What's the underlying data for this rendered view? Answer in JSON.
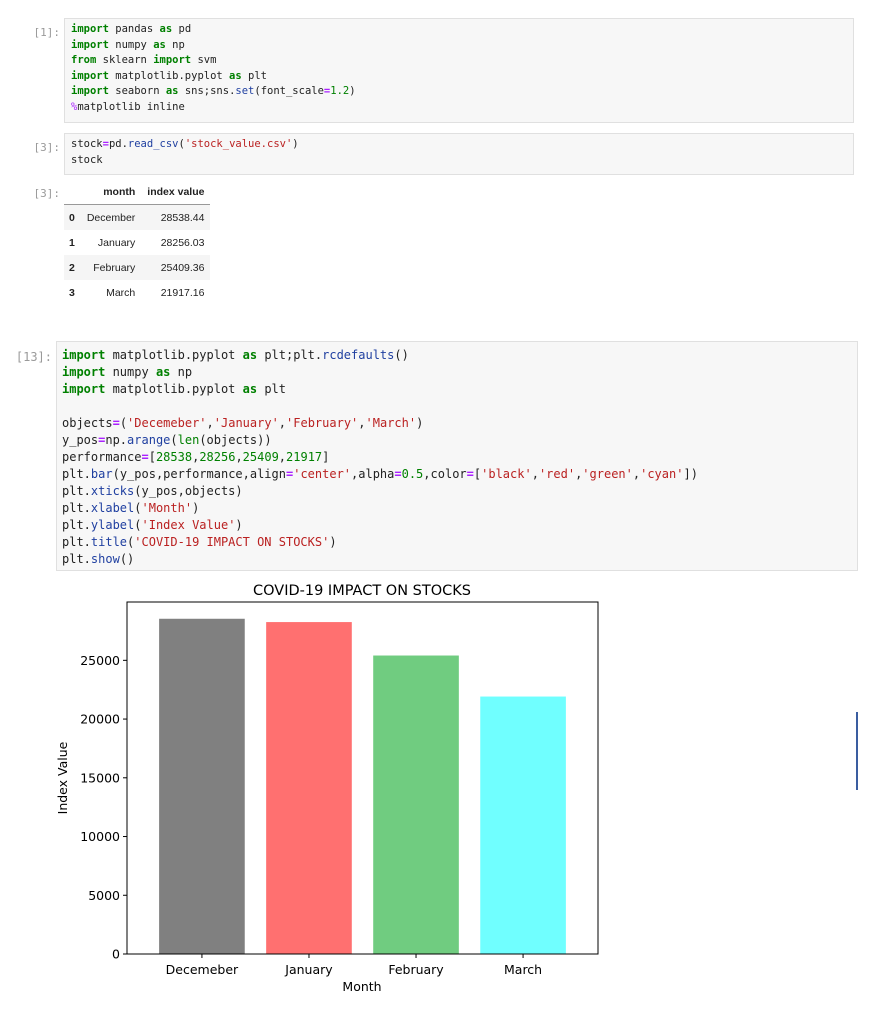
{
  "cells": [
    {
      "prompt": "[1]:",
      "lines": [
        [
          {
            "t": "import",
            "c": "kw"
          },
          {
            "t": " pandas "
          },
          {
            "t": "as",
            "c": "kw"
          },
          {
            "t": " pd"
          }
        ],
        [
          {
            "t": "import",
            "c": "kw"
          },
          {
            "t": " numpy "
          },
          {
            "t": "as",
            "c": "kw"
          },
          {
            "t": " np"
          }
        ],
        [
          {
            "t": "from",
            "c": "kw"
          },
          {
            "t": " sklearn "
          },
          {
            "t": "import",
            "c": "kw"
          },
          {
            "t": " svm"
          }
        ],
        [
          {
            "t": "import",
            "c": "kw"
          },
          {
            "t": " matplotlib.pyplot "
          },
          {
            "t": "as",
            "c": "kw"
          },
          {
            "t": " plt"
          }
        ],
        [
          {
            "t": "import",
            "c": "kw"
          },
          {
            "t": " seaborn "
          },
          {
            "t": "as",
            "c": "kw"
          },
          {
            "t": " sns;sns."
          },
          {
            "t": "set",
            "c": "fn"
          },
          {
            "t": "(font_scale"
          },
          {
            "t": "=",
            "c": "op"
          },
          {
            "t": "1.2",
            "c": "num"
          },
          {
            "t": ")"
          }
        ],
        [
          {
            "t": "%",
            "c": "mag"
          },
          {
            "t": "matplotlib inline"
          }
        ]
      ]
    },
    {
      "prompt": "[3]:",
      "lines": [
        [
          {
            "t": "stock"
          },
          {
            "t": "=",
            "c": "op"
          },
          {
            "t": "pd."
          },
          {
            "t": "read_csv",
            "c": "fn"
          },
          {
            "t": "("
          },
          {
            "t": "'stock_value.csv'",
            "c": "str"
          },
          {
            "t": ")"
          }
        ],
        [
          {
            "t": "stock"
          }
        ]
      ]
    },
    {
      "prompt": "[13]:",
      "lines": [
        [
          {
            "t": "import",
            "c": "kw"
          },
          {
            "t": " matplotlib.pyplot "
          },
          {
            "t": "as",
            "c": "kw"
          },
          {
            "t": " plt;plt."
          },
          {
            "t": "rcdefaults",
            "c": "fn"
          },
          {
            "t": "()"
          }
        ],
        [
          {
            "t": "import",
            "c": "kw"
          },
          {
            "t": " numpy "
          },
          {
            "t": "as",
            "c": "kw"
          },
          {
            "t": " np"
          }
        ],
        [
          {
            "t": "import",
            "c": "kw"
          },
          {
            "t": " matplotlib.pyplot "
          },
          {
            "t": "as",
            "c": "kw"
          },
          {
            "t": " plt"
          }
        ],
        [],
        [
          {
            "t": "objects"
          },
          {
            "t": "=",
            "c": "op"
          },
          {
            "t": "("
          },
          {
            "t": "'Decemeber'",
            "c": "str"
          },
          {
            "t": ","
          },
          {
            "t": "'January'",
            "c": "str"
          },
          {
            "t": ","
          },
          {
            "t": "'February'",
            "c": "str"
          },
          {
            "t": ","
          },
          {
            "t": "'March'",
            "c": "str"
          },
          {
            "t": ")"
          }
        ],
        [
          {
            "t": "y_pos"
          },
          {
            "t": "=",
            "c": "op"
          },
          {
            "t": "np."
          },
          {
            "t": "arange",
            "c": "fn"
          },
          {
            "t": "("
          },
          {
            "t": "len",
            "c": "num"
          },
          {
            "t": "(objects))"
          }
        ],
        [
          {
            "t": "performance"
          },
          {
            "t": "=",
            "c": "op"
          },
          {
            "t": "["
          },
          {
            "t": "28538",
            "c": "num"
          },
          {
            "t": ","
          },
          {
            "t": "28256",
            "c": "num"
          },
          {
            "t": ","
          },
          {
            "t": "25409",
            "c": "num"
          },
          {
            "t": ","
          },
          {
            "t": "21917",
            "c": "num"
          },
          {
            "t": "]"
          }
        ],
        [
          {
            "t": "plt."
          },
          {
            "t": "bar",
            "c": "fn"
          },
          {
            "t": "(y_pos,performance,align"
          },
          {
            "t": "=",
            "c": "op"
          },
          {
            "t": "'center'",
            "c": "str"
          },
          {
            "t": ",alpha"
          },
          {
            "t": "=",
            "c": "op"
          },
          {
            "t": "0.5",
            "c": "num"
          },
          {
            "t": ",color"
          },
          {
            "t": "=",
            "c": "op"
          },
          {
            "t": "["
          },
          {
            "t": "'black'",
            "c": "str"
          },
          {
            "t": ","
          },
          {
            "t": "'red'",
            "c": "str"
          },
          {
            "t": ","
          },
          {
            "t": "'green'",
            "c": "str"
          },
          {
            "t": ","
          },
          {
            "t": "'cyan'",
            "c": "str"
          },
          {
            "t": "])"
          }
        ],
        [
          {
            "t": "plt."
          },
          {
            "t": "xticks",
            "c": "fn"
          },
          {
            "t": "(y_pos,objects)"
          }
        ],
        [
          {
            "t": "plt."
          },
          {
            "t": "xlabel",
            "c": "fn"
          },
          {
            "t": "("
          },
          {
            "t": "'Month'",
            "c": "str"
          },
          {
            "t": ")"
          }
        ],
        [
          {
            "t": "plt."
          },
          {
            "t": "ylabel",
            "c": "fn"
          },
          {
            "t": "("
          },
          {
            "t": "'Index Value'",
            "c": "str"
          },
          {
            "t": ")"
          }
        ],
        [
          {
            "t": "plt."
          },
          {
            "t": "title",
            "c": "fn"
          },
          {
            "t": "("
          },
          {
            "t": "'COVID-19 IMPACT ON STOCKS'",
            "c": "str"
          },
          {
            "t": ")"
          }
        ],
        [
          {
            "t": "plt."
          },
          {
            "t": "show",
            "c": "fn"
          },
          {
            "t": "()"
          }
        ]
      ]
    }
  ],
  "output_prompt": "[3]:",
  "dataframe": {
    "columns": [
      "month",
      "index value"
    ],
    "rows": [
      {
        "index": "0",
        "month": "December",
        "value": "28538.44"
      },
      {
        "index": "1",
        "month": "January",
        "value": "28256.03"
      },
      {
        "index": "2",
        "month": "February",
        "value": "25409.36"
      },
      {
        "index": "3",
        "month": "March",
        "value": "21917.16"
      }
    ]
  },
  "chart_data": {
    "type": "bar",
    "title": "COVID-19 IMPACT ON STOCKS",
    "xlabel": "Month",
    "ylabel": "Index Value",
    "categories": [
      "Decemeber",
      "January",
      "February",
      "March"
    ],
    "values": [
      28538,
      28256,
      25409,
      21917
    ],
    "colors": [
      "#808080",
      "#ff7070",
      "#70cc80",
      "#70ffff"
    ],
    "ylim": [
      0,
      29965
    ],
    "yticks": [
      0,
      5000,
      10000,
      15000,
      20000,
      25000
    ],
    "grid": false
  }
}
